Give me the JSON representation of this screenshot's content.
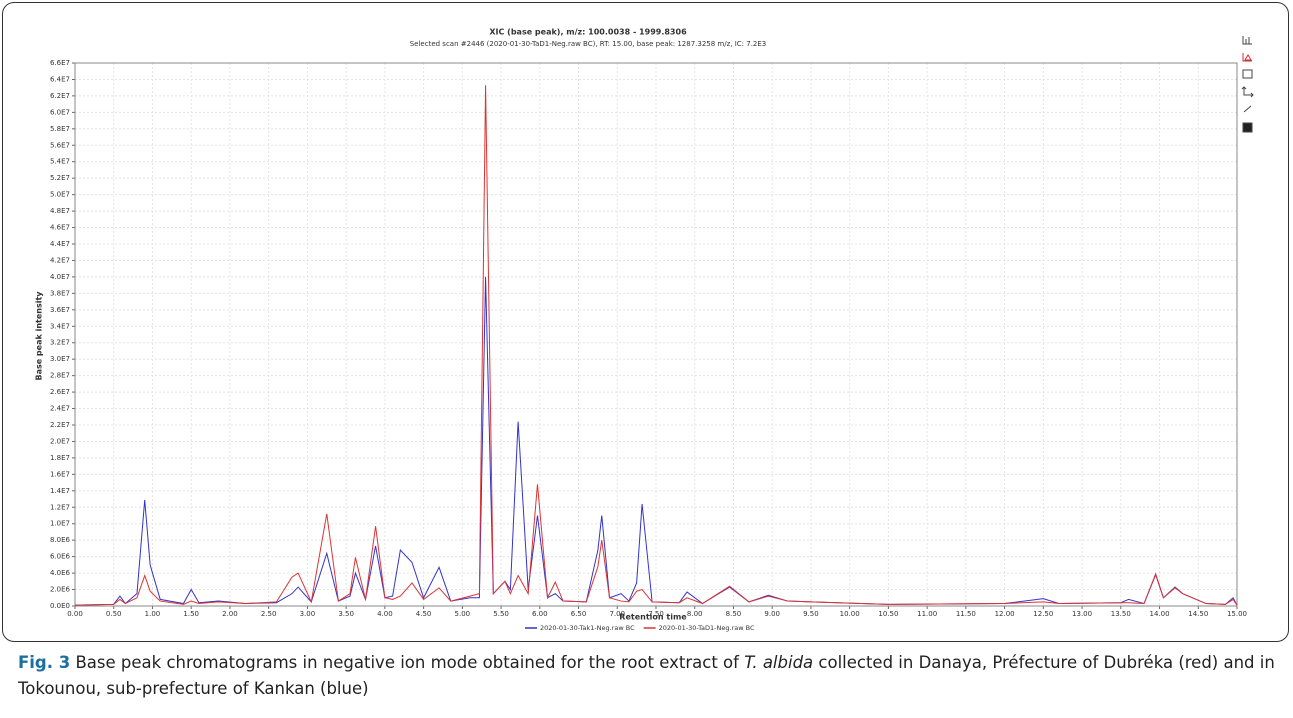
{
  "chart_data": {
    "type": "line",
    "title": "XIC (base peak), m/z: 100.0038 - 1999.8306",
    "subtitle": "Selected scan #2446 (2020-01-30-TaD1-Neg.raw BC), RT: 15.00, base peak: 1287.3258 m/z, IC: 7.2E3",
    "x_label": "Retention time",
    "y_label": "Base peak intensity",
    "xlim": [
      0,
      15
    ],
    "ylim": [
      0,
      66000000
    ],
    "xticks": [
      {
        "value": 0,
        "label": "0.00"
      },
      {
        "value": 0.5,
        "label": "0.50"
      },
      {
        "value": 1,
        "label": "1.00"
      },
      {
        "value": 1.5,
        "label": "1.50"
      },
      {
        "value": 2,
        "label": "2.00"
      },
      {
        "value": 2.5,
        "label": "2.50"
      },
      {
        "value": 3,
        "label": "3.00"
      },
      {
        "value": 3.5,
        "label": "3.50"
      },
      {
        "value": 4,
        "label": "4.00"
      },
      {
        "value": 4.5,
        "label": "4.50"
      },
      {
        "value": 5,
        "label": "5.00"
      },
      {
        "value": 5.5,
        "label": "5.50"
      },
      {
        "value": 6,
        "label": "6.00"
      },
      {
        "value": 6.5,
        "label": "6.50"
      },
      {
        "value": 7,
        "label": "7.00"
      },
      {
        "value": 7.5,
        "label": "7.50"
      },
      {
        "value": 8,
        "label": "8.00"
      },
      {
        "value": 8.5,
        "label": "8.50"
      },
      {
        "value": 9,
        "label": "9.00"
      },
      {
        "value": 9.5,
        "label": "9.50"
      },
      {
        "value": 10,
        "label": "10.00"
      },
      {
        "value": 10.5,
        "label": "10.50"
      },
      {
        "value": 11,
        "label": "11.00"
      },
      {
        "value": 11.5,
        "label": "11.50"
      },
      {
        "value": 12,
        "label": "12.00"
      },
      {
        "value": 12.5,
        "label": "12.50"
      },
      {
        "value": 13,
        "label": "13.00"
      },
      {
        "value": 13.5,
        "label": "13.50"
      },
      {
        "value": 14,
        "label": "14.00"
      },
      {
        "value": 14.5,
        "label": "14.50"
      },
      {
        "value": 15,
        "label": "15.00"
      }
    ],
    "yticks": [
      {
        "value": 0,
        "label": "0.0E0"
      },
      {
        "value": 2000000,
        "label": "2.0E6"
      },
      {
        "value": 4000000,
        "label": "4.0E6"
      },
      {
        "value": 6000000,
        "label": "6.0E6"
      },
      {
        "value": 8000000,
        "label": "8.0E6"
      },
      {
        "value": 10000000,
        "label": "1.0E7"
      },
      {
        "value": 12000000,
        "label": "1.2E7"
      },
      {
        "value": 14000000,
        "label": "1.4E7"
      },
      {
        "value": 16000000,
        "label": "1.6E7"
      },
      {
        "value": 18000000,
        "label": "1.8E7"
      },
      {
        "value": 20000000,
        "label": "2.0E7"
      },
      {
        "value": 22000000,
        "label": "2.2E7"
      },
      {
        "value": 24000000,
        "label": "2.4E7"
      },
      {
        "value": 26000000,
        "label": "2.6E7"
      },
      {
        "value": 28000000,
        "label": "2.8E7"
      },
      {
        "value": 30000000,
        "label": "3.0E7"
      },
      {
        "value": 32000000,
        "label": "3.2E7"
      },
      {
        "value": 34000000,
        "label": "3.4E7"
      },
      {
        "value": 36000000,
        "label": "3.6E7"
      },
      {
        "value": 38000000,
        "label": "3.8E7"
      },
      {
        "value": 40000000,
        "label": "4.0E7"
      },
      {
        "value": 42000000,
        "label": "4.2E7"
      },
      {
        "value": 44000000,
        "label": "4.4E7"
      },
      {
        "value": 46000000,
        "label": "4.6E7"
      },
      {
        "value": 48000000,
        "label": "4.8E7"
      },
      {
        "value": 50000000,
        "label": "5.0E7"
      },
      {
        "value": 52000000,
        "label": "5.2E7"
      },
      {
        "value": 54000000,
        "label": "5.4E7"
      },
      {
        "value": 56000000,
        "label": "5.6E7"
      },
      {
        "value": 58000000,
        "label": "5.8E7"
      },
      {
        "value": 60000000,
        "label": "6.0E7"
      },
      {
        "value": 62000000,
        "label": "6.2E7"
      },
      {
        "value": 64000000,
        "label": "6.4E7"
      },
      {
        "value": 66000000,
        "label": "6.6E7"
      }
    ],
    "grid": true,
    "x": [
      0,
      0.5,
      0.58,
      0.65,
      0.8,
      0.9,
      0.97,
      1.1,
      1.4,
      1.5,
      1.6,
      1.85,
      2.2,
      2.6,
      2.8,
      2.88,
      3.05,
      3.25,
      3.4,
      3.55,
      3.62,
      3.75,
      3.88,
      4.0,
      4.1,
      4.2,
      4.35,
      4.5,
      4.7,
      4.85,
      5.1,
      5.22,
      5.3,
      5.4,
      5.55,
      5.62,
      5.72,
      5.85,
      5.97,
      6.1,
      6.2,
      6.3,
      6.6,
      6.75,
      6.8,
      6.9,
      7.05,
      7.15,
      7.25,
      7.32,
      7.45,
      7.8,
      7.9,
      8.1,
      8.45,
      8.7,
      8.95,
      9.2,
      9.5,
      10.5,
      12.0,
      12.5,
      12.7,
      13.5,
      13.6,
      13.8,
      13.95,
      14.05,
      14.2,
      14.3,
      14.6,
      14.85,
      14.95,
      15.0
    ],
    "series": [
      {
        "name": "2020-01-30-Tak1-Neg.raw BC",
        "color": "#3333cc",
        "values": [
          100000.0,
          200000.0,
          1200000.0,
          300000.0,
          1500000.0,
          12900000.0,
          5000000.0,
          800000.0,
          300000.0,
          2000000.0,
          400000.0,
          600000.0,
          300000.0,
          400000.0,
          1500000.0,
          2300000.0,
          500000.0,
          6400000.0,
          600000.0,
          1200000.0,
          4000000.0,
          800000.0,
          7300000.0,
          1000000.0,
          1200000.0,
          6800000.0,
          5300000.0,
          1000000.0,
          4700000.0,
          600000.0,
          1000000.0,
          1000000.0,
          40000000.0,
          1500000.0,
          3000000.0,
          2000000.0,
          22400000.0,
          2000000.0,
          11000000.0,
          1000000.0,
          1500000.0,
          600000.0,
          500000.0,
          6800000.0,
          11000000.0,
          1000000.0,
          1500000.0,
          600000.0,
          2800000.0,
          12400000.0,
          500000.0,
          400000.0,
          1700000.0,
          300000.0,
          2300000.0,
          500000.0,
          1300000.0,
          600000.0,
          500000.0,
          200000.0,
          300000.0,
          900000.0,
          300000.0,
          400000.0,
          800000.0,
          300000.0,
          3800000.0,
          1000000.0,
          2300000.0,
          1500000.0,
          300000.0,
          200000.0,
          1000000.0,
          100000.0
        ]
      },
      {
        "name": "2020-01-30-TaD1-Neg.raw BC",
        "color": "#dd3333",
        "values": [
          100000.0,
          200000.0,
          800000.0,
          300000.0,
          1000000.0,
          3700000.0,
          1800000.0,
          600000.0,
          200000.0,
          600000.0,
          300000.0,
          500000.0,
          300000.0,
          500000.0,
          3500000.0,
          4000000.0,
          500000.0,
          11200000.0,
          600000.0,
          1500000.0,
          5900000.0,
          800000.0,
          9700000.0,
          1000000.0,
          800000.0,
          1200000.0,
          2800000.0,
          800000.0,
          2200000.0,
          600000.0,
          1200000.0,
          1500000.0,
          63300000.0,
          1500000.0,
          3000000.0,
          1500000.0,
          3700000.0,
          1500000.0,
          14800000.0,
          1000000.0,
          2900000.0,
          600000.0,
          500000.0,
          4800000.0,
          8000000.0,
          1000000.0,
          600000.0,
          500000.0,
          1800000.0,
          2000000.0,
          500000.0,
          400000.0,
          1000000.0,
          300000.0,
          2400000.0,
          500000.0,
          1200000.0,
          600000.0,
          500000.0,
          200000.0,
          300000.0,
          500000.0,
          300000.0,
          400000.0,
          400000.0,
          300000.0,
          3900000.0,
          1000000.0,
          2200000.0,
          1500000.0,
          300000.0,
          200000.0,
          800000.0,
          100000.0
        ]
      }
    ]
  },
  "caption": {
    "label": "Fig. 3",
    "text_before": "Base peak chromatograms in negative ion mode obtained for the root extract of ",
    "species": "T. albida",
    "text_after": " collected in Danaya, Préfecture of Dubréka (red) and in Tokounou, sub-prefecture of Kankan (blue)"
  }
}
